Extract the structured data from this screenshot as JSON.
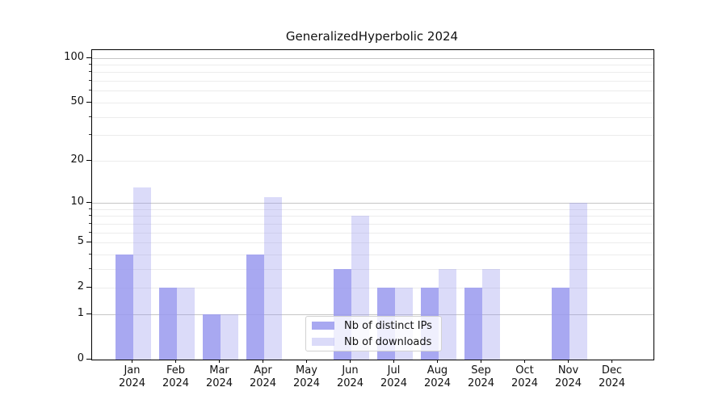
{
  "title": "GeneralizedHyperbolic 2024",
  "legend": {
    "items": [
      {
        "label": "Nb of distinct IPs",
        "color": "rgba(153,153,238,0.85)"
      },
      {
        "label": "Nb of downloads",
        "color": "rgba(153,153,238,0.35)"
      }
    ]
  },
  "chart_data": {
    "type": "bar",
    "title": "GeneralizedHyperbolic 2024",
    "categories": [
      "Jan 2024",
      "Feb 2024",
      "Mar 2024",
      "Apr 2024",
      "May 2024",
      "Jun 2024",
      "Jul 2024",
      "Aug 2024",
      "Sep 2024",
      "Oct 2024",
      "Nov 2024",
      "Dec 2024"
    ],
    "series": [
      {
        "name": "Nb of distinct IPs",
        "color": "rgba(153,153,238,0.85)",
        "values": [
          4,
          2,
          1,
          4,
          0,
          3,
          2,
          2,
          2,
          0,
          2,
          0
        ]
      },
      {
        "name": "Nb of downloads",
        "color": "rgba(153,153,238,0.35)",
        "values": [
          13,
          2,
          1,
          11,
          0,
          8,
          2,
          3,
          3,
          0,
          10,
          0
        ]
      }
    ],
    "yscale": "log1p",
    "ylim": [
      0,
      112
    ],
    "y_tick_labels": [
      0,
      1,
      2,
      5,
      10,
      20,
      50,
      100
    ],
    "y_major_gridlines": [
      1,
      10,
      100
    ],
    "y_minor_gridlines": [
      2,
      3,
      4,
      5,
      6,
      7,
      8,
      9,
      20,
      30,
      40,
      50,
      60,
      70,
      80,
      90
    ],
    "grid": true,
    "legend_position": "lower center"
  },
  "colors": {
    "grid_major": "#c6c6c6",
    "grid_minor": "#ececec",
    "axis": "#000000",
    "text": "#111111"
  }
}
